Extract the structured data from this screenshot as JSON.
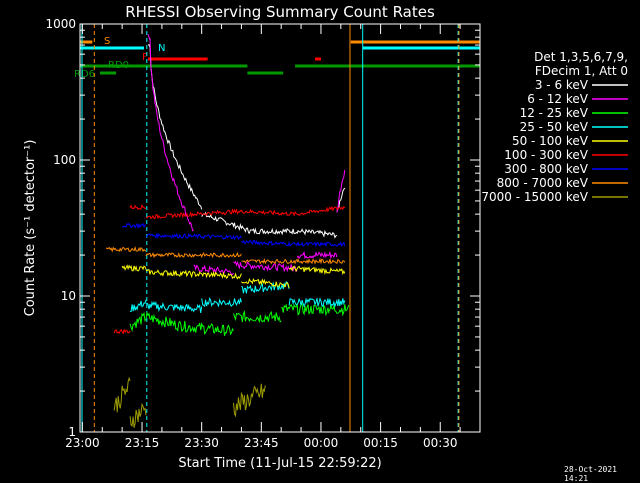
{
  "chart_data": {
    "type": "line",
    "title": "RHESSI Observing Summary Count Rates",
    "xlabel": "Start Time (11-Jul-15 22:59:22)",
    "ylabel": "Count Rate (s⁻¹ detector⁻¹)",
    "yscale": "log",
    "ylim": [
      1,
      1000
    ],
    "xlim_minutes_from_2300": [
      -0.6,
      100
    ],
    "x_tick_labels": [
      "23:00",
      "23:15",
      "23:30",
      "23:45",
      "00:00",
      "00:15",
      "00:30"
    ],
    "y_tick_labels": [
      "1",
      "10",
      "100",
      "1000"
    ],
    "legend_header": [
      "Det 1,3,5,6,7,9,",
      "FDecim 1, Att 0"
    ],
    "legend_position": "right",
    "series": [
      {
        "name": "3 - 6 keV",
        "color": "#ffffff"
      },
      {
        "name": "6 - 12 keV",
        "color": "#ff00ff"
      },
      {
        "name": "12 - 25 keV",
        "color": "#00ff00"
      },
      {
        "name": "25 - 50 keV",
        "color": "#00ffff"
      },
      {
        "name": "50 - 100 keV",
        "color": "#ffff00"
      },
      {
        "name": "100 - 300 keV",
        "color": "#ff0000"
      },
      {
        "name": "300 - 800 keV",
        "color": "#0000ff"
      },
      {
        "name": "800 - 7000 keV",
        "color": "#ff8c00"
      },
      {
        "name": "7000 - 15000 keV",
        "color": "#9c9c00"
      }
    ],
    "flag_labels": {
      "saa": "S",
      "night": "N",
      "flare": "F",
      "decim": "RD0",
      "decim2": "RD6"
    }
  },
  "footer": {
    "timestamp": "28-Oct-2021 14:21"
  }
}
